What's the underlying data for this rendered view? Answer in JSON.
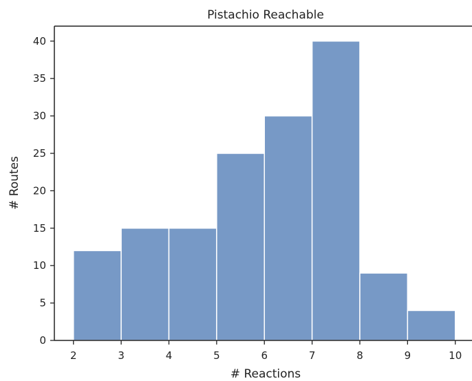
{
  "chart_data": {
    "type": "bar",
    "title": "Pistachio Reachable",
    "xlabel": "# Reactions",
    "ylabel": "# Routes",
    "bins": [
      {
        "start": 2,
        "end": 3,
        "value": 12
      },
      {
        "start": 3,
        "end": 4,
        "value": 15
      },
      {
        "start": 4,
        "end": 5,
        "value": 15
      },
      {
        "start": 5,
        "end": 6,
        "value": 25
      },
      {
        "start": 6,
        "end": 7,
        "value": 30
      },
      {
        "start": 7,
        "end": 8,
        "value": 40
      },
      {
        "start": 8,
        "end": 9,
        "value": 9
      },
      {
        "start": 9,
        "end": 10,
        "value": 4
      }
    ],
    "xticks": [
      "2",
      "3",
      "4",
      "5",
      "6",
      "7",
      "8",
      "9",
      "10"
    ],
    "yticks": [
      "0",
      "5",
      "10",
      "15",
      "20",
      "25",
      "30",
      "35",
      "40"
    ],
    "xlim": [
      1.6,
      10.35
    ],
    "ylim": [
      0,
      42
    ],
    "bar_color": "#7799c6",
    "grid": false
  }
}
